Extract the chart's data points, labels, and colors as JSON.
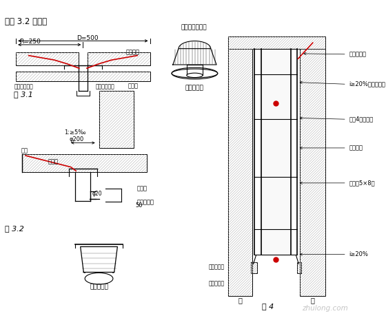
{
  "bg_color": "#ffffff",
  "watermark": "zhulong.com",
  "top_text": "和图 3.2 所示：",
  "fig31_label": "图 3.1",
  "fig32_label": "图 3.2",
  "fig4_label": "图 4",
  "fig31_ann_d": "D=500",
  "fig31_ann_r": "R=250",
  "fig31_ann_use": "用于地面",
  "fig31_ann_asphalt": "沥青麻丝填防",
  "fig31_ann_sealant": "防水油膏嵌缝",
  "fig_round_label": "圆型雨水斗",
  "fig_round_note": "用于屋面、阳台",
  "fig32_bottom_label": "方型雨水斗",
  "fig32_ann_slope": "1:≥5‰",
  "fig32_ann_phi200": "φ200",
  "fig32_ann_parapet": "女儿墙",
  "fig32_ann_roof": "天面",
  "fig32_ann_catchment": "汇水区",
  "fig32_ann_pipe": "排水管",
  "fig32_ann_50": "50",
  "fig32_ann_phi20": "φ20",
  "fig32_ann_square": "方型雨水斗",
  "fig4_ann0": "防水软水缝",
  "fig4_ann1": "i≥20%，平开安装",
  "fig4_ann2": "序号4铝滴水槽",
  "fig4_ann3": "防振软垫",
  "fig4_ann4": "泄水孔5×8槽",
  "fig4_ann5": "i≥20%",
  "fig4_ann6": "内窗台斜面",
  "fig4_ann7": "外窗台斜面",
  "fig4_ann8": "内",
  "fig4_ann9": "外",
  "line_color": "#000000",
  "red_color": "#cc0000",
  "hatch_color": "#aaaaaa"
}
